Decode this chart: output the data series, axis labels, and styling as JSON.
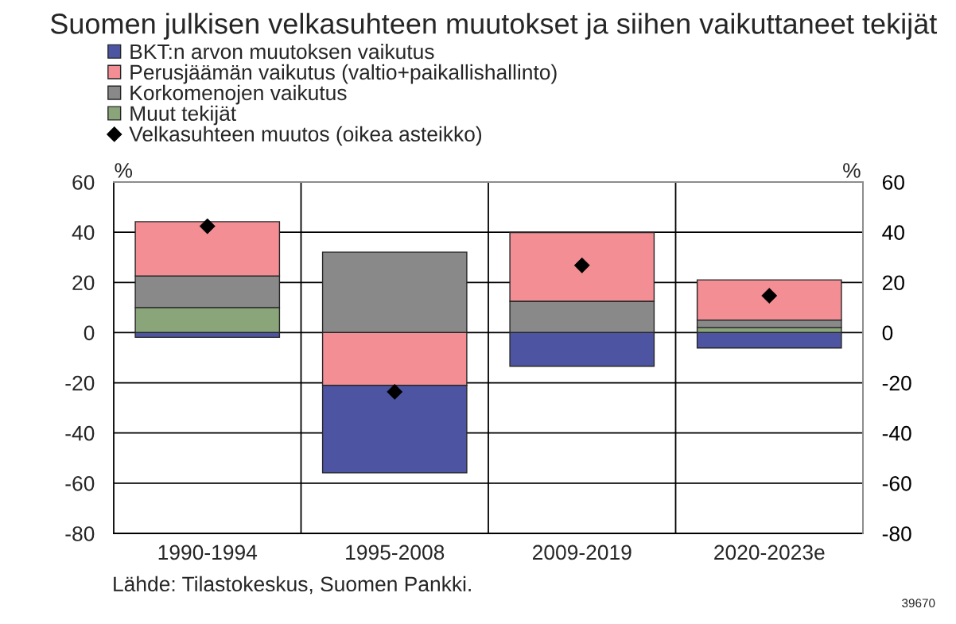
{
  "chart_data": {
    "type": "bar",
    "title": "Suomen julkisen velkasuhteen muutokset ja siihen vaikuttaneet tekijät",
    "ylabel": "%",
    "y2label": "%",
    "categories": [
      "1990-1994",
      "1995-2008",
      "2009-2019",
      "2020-2023e"
    ],
    "stacked": true,
    "series": [
      {
        "name": "Muut tekijät",
        "color": "#8aa57a",
        "values": [
          10.0,
          null,
          null,
          2.0
        ]
      },
      {
        "name": "Korkomenojen vaikutus",
        "color": "#898989",
        "values": [
          12.6,
          32.1,
          12.5,
          3.0
        ]
      },
      {
        "name": "Perusjäämän vaikutus (valtio+paikallishallinto)",
        "color": "#f28e94",
        "values": [
          21.6,
          -21.0,
          27.4,
          16.0
        ]
      },
      {
        "name": "BKT:n arvon muutoksen vaikutus",
        "color": "#4d55a3",
        "values": [
          -1.9,
          -34.9,
          -13.4,
          -6.1
        ]
      },
      {
        "name": "Velkasuhteen muutos (oikea asteikko)",
        "type": "scatter",
        "axis": "y2",
        "color": "#000000",
        "marker": "diamond",
        "values": [
          42.4,
          -23.6,
          26.8,
          14.7
        ]
      }
    ],
    "ylim": [
      -80,
      60
    ],
    "yticks": [
      -80,
      -60,
      -40,
      -20,
      0,
      20,
      40,
      60
    ],
    "y2lim": [
      -80,
      60
    ],
    "y2ticks": [
      -80,
      -60,
      -40,
      -20,
      0,
      20,
      40,
      60
    ],
    "grid": true,
    "legend": "top",
    "annotations": [
      "Lähde: Tilastokeskus, Suomen Pankki.",
      "39670"
    ]
  }
}
